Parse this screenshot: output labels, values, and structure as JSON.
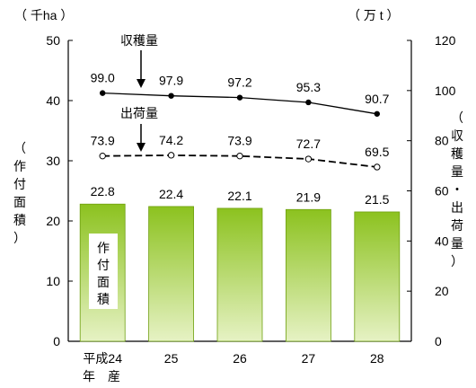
{
  "chart_data": {
    "type": "bar+line",
    "categories": [
      "平成24",
      "25",
      "26",
      "27",
      "28"
    ],
    "x_suffix_label": "年　産",
    "left_axis": {
      "unit": "（ 千ha ）",
      "title": [
        "（",
        "作",
        "付",
        "面",
        "積",
        "）"
      ],
      "ylim": [
        0,
        50
      ],
      "ticks": [
        "0",
        "10",
        "20",
        "30",
        "40",
        "50"
      ]
    },
    "right_axis": {
      "unit": "（ 万 t ）",
      "title": [
        "（",
        "収",
        "穫",
        "量",
        "・",
        "出",
        "荷",
        "量",
        "）"
      ],
      "ylim": [
        0,
        120
      ],
      "ticks": [
        "0",
        "20",
        "40",
        "60",
        "80",
        "100",
        "120"
      ]
    },
    "series": [
      {
        "name": "作付面積",
        "name_chars": [
          "作",
          "付",
          "面",
          "積"
        ],
        "axis": "left",
        "kind": "bar",
        "values": [
          22.8,
          22.4,
          22.1,
          21.9,
          21.5
        ],
        "labels": [
          "22.8",
          "22.4",
          "22.1",
          "21.9",
          "21.5"
        ]
      },
      {
        "name": "収穫量",
        "axis": "right",
        "kind": "line-solid",
        "values": [
          99.0,
          97.9,
          97.2,
          95.3,
          90.7
        ],
        "labels": [
          "99.0",
          "97.9",
          "97.2",
          "95.3",
          "90.7"
        ]
      },
      {
        "name": "出荷量",
        "axis": "right",
        "kind": "line-dashed",
        "values": [
          73.9,
          74.2,
          73.9,
          72.7,
          69.5
        ],
        "labels": [
          "73.9",
          "74.2",
          "73.9",
          "72.7",
          "69.5"
        ]
      }
    ],
    "grid": false,
    "colors": {
      "bar_top": "#8cc21f",
      "bar_bottom": "#e6f2c4",
      "line": "#000000"
    }
  }
}
